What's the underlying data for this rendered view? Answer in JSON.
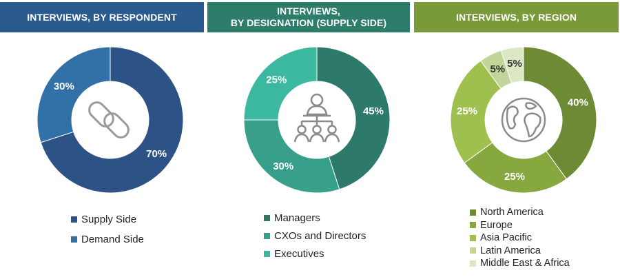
{
  "colors": {
    "respondent_header": "#2B5B8E",
    "designation_header": "#2E7D6B",
    "region_header": "#7A9A3A"
  },
  "icons": {
    "respondent": "chain-link-icon",
    "designation": "org-chart-icon",
    "region": "globe-icon"
  },
  "chart_data": [
    {
      "type": "pie",
      "title": "INTERVIEWS, BY RESPONDENT",
      "categories": [
        "Supply Side",
        "Demand Side"
      ],
      "values": [
        70,
        30
      ],
      "labels": [
        "70%",
        "30%"
      ],
      "colors": [
        "#2D5386",
        "#3270A8"
      ],
      "legend": "bottom"
    },
    {
      "type": "pie",
      "title": [
        "INTERVIEWS,",
        "BY DESIGNATION (SUPPLY SIDE)"
      ],
      "categories": [
        "Managers",
        "CXOs and Directors",
        "Executives"
      ],
      "values": [
        45,
        30,
        25
      ],
      "labels": [
        "45%",
        "30%",
        "25%"
      ],
      "colors": [
        "#2D7A6A",
        "#38A08A",
        "#3CB7A0"
      ],
      "legend": "bottom"
    },
    {
      "type": "pie",
      "title": "INTERVIEWS, BY REGION",
      "categories": [
        "North America",
        "Europe",
        "Asia Pacific",
        "Latin America",
        "Middle East & Africa"
      ],
      "values": [
        40,
        25,
        25,
        5,
        5
      ],
      "labels": [
        "40%",
        "25%",
        "25%",
        "5%",
        "5%"
      ],
      "colors": [
        "#6F8A35",
        "#87A83E",
        "#9FC04E",
        "#C3D69A",
        "#DCE7C4"
      ],
      "legend": "bottom"
    }
  ]
}
